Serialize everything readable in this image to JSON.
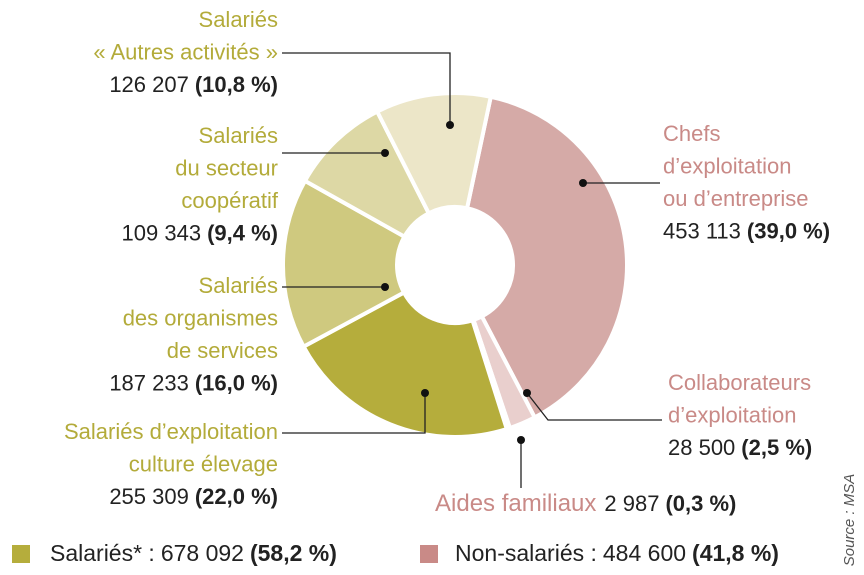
{
  "chart_data": {
    "type": "donut",
    "categories": [
      [
        "Chefs",
        "d’exploitation",
        "ou d’entreprise"
      ],
      [
        "Collaborateurs",
        "d’exploitation"
      ],
      [
        "Aides familiaux"
      ],
      [
        "Salariés d’exploitation",
        "culture élevage"
      ],
      [
        "Salariés",
        "des organismes",
        "de services"
      ],
      [
        "Salariés",
        "du secteur",
        "coopératif"
      ],
      [
        "Salariés",
        "« Autres activités »"
      ]
    ],
    "values": [
      453113,
      28500,
      2987,
      255309,
      187233,
      109343,
      126207
    ],
    "value_labels": [
      "453 113",
      "28 500",
      "2 987",
      "255 309",
      "187 233",
      "109 343",
      "126 207"
    ],
    "percents": [
      39.0,
      2.5,
      0.3,
      22.0,
      16.0,
      9.4,
      10.8
    ],
    "percent_labels": [
      "(39,0 %)",
      "(2,5 %)",
      "(0,3 %)",
      "(22,0 %)",
      "(16,0 %)",
      "(9,4 %)",
      "(10,8 %)"
    ],
    "colors": [
      "#d5aaa7",
      "#e9cfcd",
      "#c4807d",
      "#b5ad3c",
      "#cfc97f",
      "#ddd8a5",
      "#ece6c8"
    ],
    "label_colors": [
      "#c98a87",
      "#c98a87",
      "#c98a87",
      "#b3ab3a",
      "#b3ab3a",
      "#b3ab3a",
      "#b3ab3a"
    ],
    "legend": [
      {
        "name": "Salariés* :",
        "value": 678092,
        "value_label": "678 092",
        "percent": 58.2,
        "percent_label": "(58,2 %)",
        "color": "#b5ad3c"
      },
      {
        "name": "Non-salariés :",
        "value": 484600,
        "value_label": "484 600",
        "percent": 41.8,
        "percent_label": "(41,8 %)",
        "color": "#c98a87"
      }
    ],
    "source": "Source : MSA"
  }
}
